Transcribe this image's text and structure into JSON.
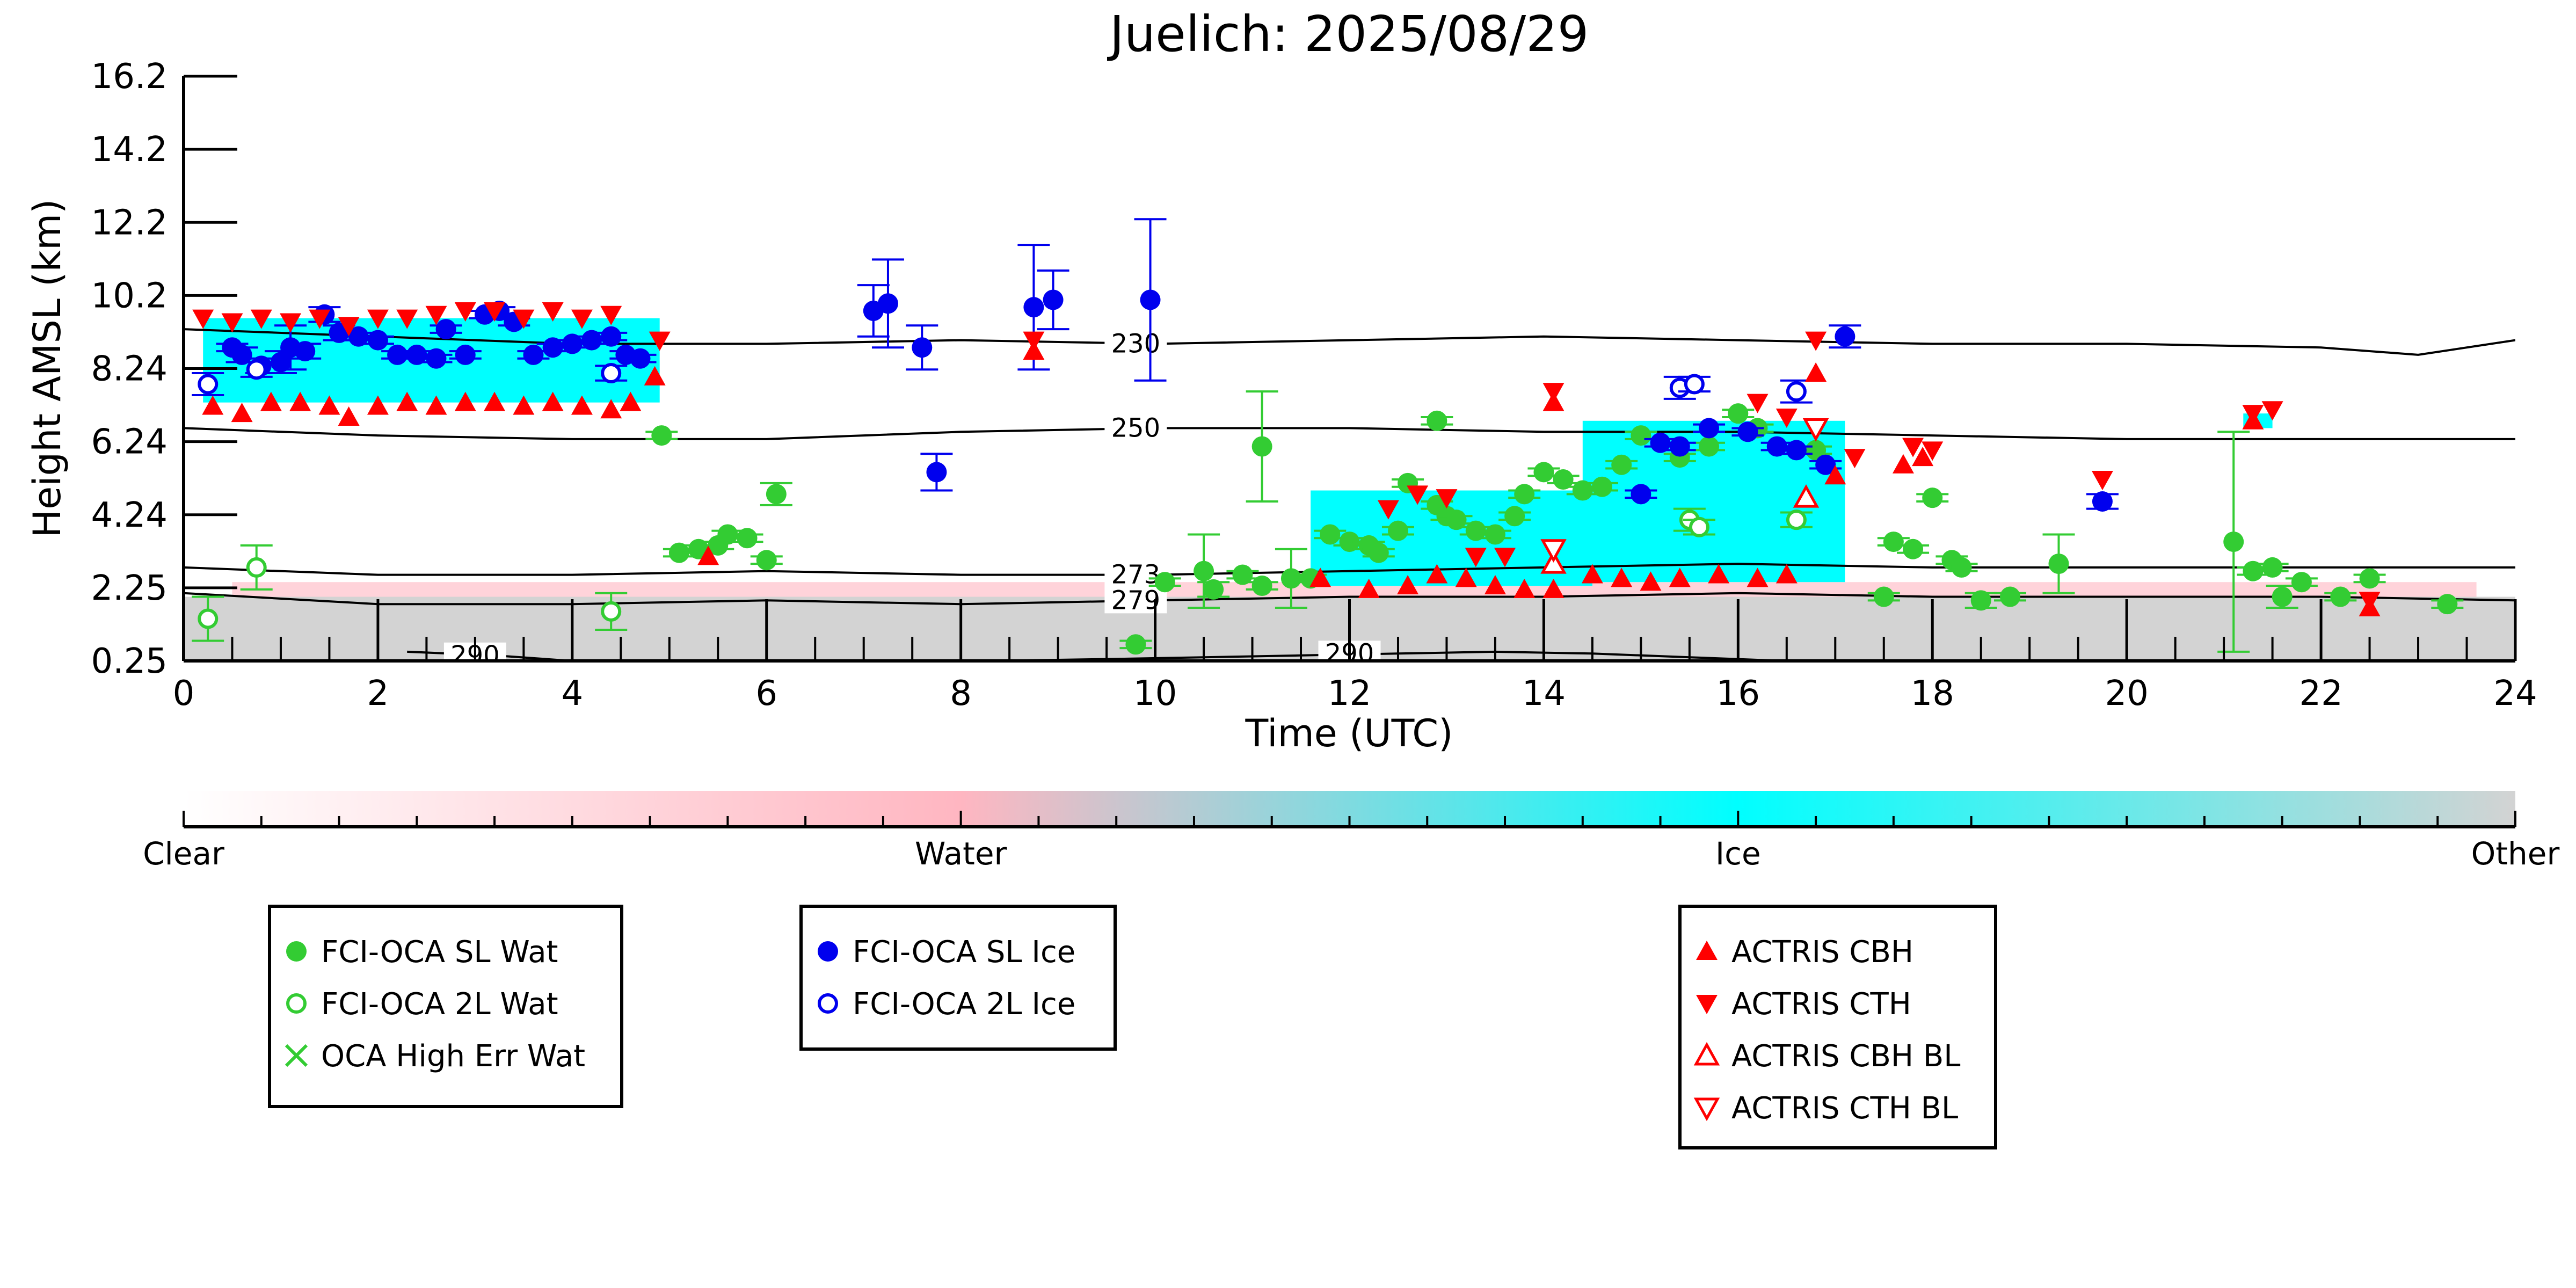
{
  "chart_data": {
    "type": "scatter",
    "title": "Juelich: 2025/08/29",
    "xlabel": "Time (UTC)",
    "ylabel": "Height AMSL (km)",
    "xlim": [
      0,
      24
    ],
    "ylim": [
      0.25,
      16.2
    ],
    "xticks": [
      "0",
      "2",
      "4",
      "6",
      "8",
      "10",
      "12",
      "14",
      "16",
      "18",
      "20",
      "22",
      "24"
    ],
    "yticks": [
      "0.25",
      "2.25",
      "4.24",
      "6.24",
      "8.24",
      "10.2",
      "12.2",
      "14.2",
      "16.2"
    ],
    "grid": false,
    "colorbar": {
      "labels": [
        "Clear",
        "Water",
        "Ice",
        "Other"
      ],
      "colors": [
        "#ffffff",
        "#ffb6c1",
        "#00ffff",
        "#d3d3d3"
      ]
    },
    "background": {
      "description_colors": {
        "water": "#ffb6c1",
        "ice": "#00ffff",
        "other": "#d3d3d3"
      },
      "ice_regions": [
        {
          "x0": 0.2,
          "x1": 4.9,
          "y0": 7.3,
          "y1": 9.6
        },
        {
          "x0": 11.6,
          "x1": 14.5,
          "y0": 2.3,
          "y1": 4.9
        },
        {
          "x0": 14.4,
          "x1": 17.1,
          "y0": 2.4,
          "y1": 6.8
        },
        {
          "x0": 21.2,
          "x1": 21.5,
          "y0": 6.6,
          "y1": 7.0
        }
      ],
      "other_regions": [
        {
          "x0": 0,
          "x1": 24,
          "y0": 0.25,
          "y1": 2.0
        }
      ]
    },
    "contours": [
      {
        "label": "230",
        "x": [
          0,
          2,
          4,
          6,
          8,
          10,
          12,
          14,
          16,
          18,
          20,
          22,
          23,
          24
        ],
        "y": [
          9.3,
          9.1,
          8.9,
          8.9,
          9.0,
          8.9,
          9.0,
          9.1,
          9.0,
          8.9,
          8.9,
          8.8,
          8.6,
          9.0
        ]
      },
      {
        "label": "250",
        "x": [
          0,
          2,
          4,
          6,
          8,
          10,
          12,
          14,
          16,
          18,
          20,
          22,
          24
        ],
        "y": [
          6.6,
          6.4,
          6.3,
          6.3,
          6.5,
          6.6,
          6.6,
          6.5,
          6.5,
          6.4,
          6.3,
          6.3,
          6.3
        ]
      },
      {
        "label": "273",
        "x": [
          0,
          2,
          4,
          6,
          8,
          10,
          12,
          14,
          16,
          18,
          20,
          22,
          24
        ],
        "y": [
          2.8,
          2.6,
          2.6,
          2.7,
          2.6,
          2.6,
          2.7,
          2.8,
          2.9,
          2.8,
          2.8,
          2.8,
          2.8
        ]
      },
      {
        "label": "279",
        "x": [
          0,
          2,
          4,
          6,
          8,
          10,
          12,
          14,
          16,
          18,
          20,
          22,
          24
        ],
        "y": [
          2.1,
          1.8,
          1.8,
          1.9,
          1.8,
          1.9,
          2.0,
          2.0,
          2.1,
          2.0,
          2.0,
          2.0,
          1.9
        ]
      },
      {
        "label": "290",
        "x": [
          2.3,
          3.2,
          4.0
        ],
        "y": [
          0.5,
          0.4,
          0.25
        ]
      },
      {
        "label": "290",
        "x": [
          8.3,
          9.5,
          10.5,
          11.5,
          12.5,
          13.5,
          14.5,
          15.5,
          16.5
        ],
        "y": [
          0.25,
          0.3,
          0.35,
          0.4,
          0.45,
          0.5,
          0.45,
          0.35,
          0.25
        ]
      }
    ],
    "series": [
      {
        "name": "FCI-OCA SL Wat",
        "marker": "filled-circle",
        "color": "#33cc33",
        "points": [
          [
            4.92,
            6.4,
            0.1
          ],
          [
            5.1,
            3.2,
            0.1
          ],
          [
            5.3,
            3.3,
            0.1
          ],
          [
            5.5,
            3.4,
            0.1
          ],
          [
            5.6,
            3.7,
            0.1
          ],
          [
            5.8,
            3.6,
            0.1
          ],
          [
            6.0,
            3.0,
            0.1
          ],
          [
            6.1,
            4.8,
            0.3
          ],
          [
            9.8,
            0.7,
            0.1
          ],
          [
            10.1,
            2.4,
            0.1
          ],
          [
            10.5,
            2.7,
            1.0
          ],
          [
            10.6,
            2.2,
            0.2
          ],
          [
            10.9,
            2.6,
            0.1
          ],
          [
            11.1,
            2.3,
            0.1
          ],
          [
            11.1,
            6.1,
            1.5
          ],
          [
            11.4,
            2.5,
            0.8
          ],
          [
            11.6,
            2.5,
            0.1
          ],
          [
            11.8,
            3.7,
            0.1
          ],
          [
            12.0,
            3.5,
            0.1
          ],
          [
            12.2,
            3.4,
            0.1
          ],
          [
            12.3,
            3.2,
            0.1
          ],
          [
            12.5,
            3.8,
            0.1
          ],
          [
            12.6,
            5.1,
            0.1
          ],
          [
            12.9,
            4.5,
            0.1
          ],
          [
            12.9,
            6.8,
            0.1
          ],
          [
            13.0,
            4.2,
            0.1
          ],
          [
            13.1,
            4.1,
            0.1
          ],
          [
            13.3,
            3.8,
            0.1
          ],
          [
            13.5,
            3.7,
            0.1
          ],
          [
            13.7,
            4.2,
            0.1
          ],
          [
            13.8,
            4.8,
            0.1
          ],
          [
            14.0,
            5.4,
            0.1
          ],
          [
            14.2,
            5.2,
            0.1
          ],
          [
            14.4,
            4.9,
            0.1
          ],
          [
            14.6,
            5.0,
            0.1
          ],
          [
            14.8,
            5.6,
            0.1
          ],
          [
            15.0,
            6.4,
            0.1
          ],
          [
            15.4,
            5.8,
            0.1
          ],
          [
            15.7,
            6.1,
            0.1
          ],
          [
            16.0,
            7.0,
            0.1
          ],
          [
            16.2,
            6.6,
            0.1
          ],
          [
            16.8,
            6.0,
            0.1
          ],
          [
            17.5,
            2.0,
            0.1
          ],
          [
            17.6,
            3.5,
            0.1
          ],
          [
            17.8,
            3.3,
            0.1
          ],
          [
            18.0,
            4.7,
            0.1
          ],
          [
            18.2,
            3.0,
            0.1
          ],
          [
            18.3,
            2.8,
            0.1
          ],
          [
            18.5,
            1.9,
            0.2
          ],
          [
            18.8,
            2.0,
            0.1
          ],
          [
            19.3,
            2.9,
            0.8
          ],
          [
            21.1,
            3.5,
            3.0
          ],
          [
            21.3,
            2.7,
            0.1
          ],
          [
            21.5,
            2.8,
            0.1
          ],
          [
            21.6,
            2.0,
            0.3
          ],
          [
            21.8,
            2.4,
            0.1
          ],
          [
            22.2,
            2.0,
            0.1
          ],
          [
            22.5,
            2.5,
            0.1
          ],
          [
            23.3,
            1.8,
            0.1
          ]
        ]
      },
      {
        "name": "FCI-OCA 2L Wat",
        "marker": "open-circle",
        "color": "#33cc33",
        "points": [
          [
            0.25,
            1.4,
            0.6
          ],
          [
            0.75,
            2.8,
            0.6
          ],
          [
            4.4,
            1.6,
            0.5
          ],
          [
            15.5,
            4.1,
            0.3
          ],
          [
            15.6,
            3.9,
            0.2
          ],
          [
            16.6,
            4.1,
            0.2
          ]
        ]
      },
      {
        "name": "OCA High Err Wat",
        "marker": "x",
        "color": "#33cc33",
        "points": []
      },
      {
        "name": "FCI-OCA SL Ice",
        "marker": "filled-circle",
        "color": "#0000ee",
        "points": [
          [
            0.5,
            8.8,
            0.1
          ],
          [
            0.6,
            8.6,
            0.2
          ],
          [
            0.8,
            8.3,
            0.2
          ],
          [
            1.0,
            8.4,
            0.3
          ],
          [
            1.1,
            8.8,
            0.6
          ],
          [
            1.25,
            8.7,
            0.2
          ],
          [
            1.45,
            9.7,
            0.2
          ],
          [
            1.6,
            9.2,
            0.2
          ],
          [
            1.8,
            9.1,
            0.1
          ],
          [
            2.0,
            9.0,
            0.1
          ],
          [
            2.2,
            8.6,
            0.1
          ],
          [
            2.4,
            8.6,
            0.1
          ],
          [
            2.6,
            8.5,
            0.1
          ],
          [
            2.7,
            9.3,
            0.1
          ],
          [
            2.9,
            8.6,
            0.1
          ],
          [
            3.1,
            9.7,
            0.1
          ],
          [
            3.25,
            9.8,
            0.1
          ],
          [
            3.4,
            9.5,
            0.1
          ],
          [
            3.6,
            8.6,
            0.1
          ],
          [
            3.8,
            8.8,
            0.1
          ],
          [
            4.0,
            8.9,
            0.1
          ],
          [
            4.2,
            9.0,
            0.1
          ],
          [
            4.4,
            9.1,
            0.1
          ],
          [
            4.55,
            8.6,
            0.1
          ],
          [
            4.7,
            8.5,
            0.1
          ],
          [
            7.1,
            9.8,
            0.7
          ],
          [
            7.25,
            10.0,
            1.2
          ],
          [
            7.6,
            8.8,
            0.6
          ],
          [
            7.75,
            5.4,
            0.5
          ],
          [
            8.75,
            9.9,
            1.7
          ],
          [
            8.95,
            10.1,
            0.8
          ],
          [
            9.95,
            10.1,
            2.2
          ],
          [
            15.0,
            4.8,
            0.1
          ],
          [
            15.2,
            6.2,
            0.1
          ],
          [
            15.4,
            6.1,
            0.1
          ],
          [
            15.7,
            6.6,
            0.1
          ],
          [
            16.1,
            6.5,
            0.1
          ],
          [
            16.4,
            6.1,
            0.1
          ],
          [
            16.6,
            6.0,
            0.1
          ],
          [
            16.9,
            5.6,
            0.1
          ],
          [
            17.1,
            9.1,
            0.3
          ],
          [
            19.75,
            4.6,
            0.2
          ]
        ]
      },
      {
        "name": "FCI-OCA 2L Ice",
        "marker": "open-circle",
        "color": "#0000ee",
        "points": [
          [
            0.25,
            7.8,
            0.3
          ],
          [
            0.75,
            8.2,
            0.2
          ],
          [
            4.4,
            8.1,
            0.2
          ],
          [
            15.4,
            7.7,
            0.3
          ],
          [
            15.55,
            7.8,
            0.2
          ],
          [
            16.6,
            7.6,
            0.3
          ]
        ]
      },
      {
        "name": "ACTRIS CBH",
        "marker": "triangle-up",
        "color": "#ff0000",
        "points": [
          [
            0.3,
            7.2
          ],
          [
            0.6,
            7.0
          ],
          [
            0.9,
            7.3
          ],
          [
            1.2,
            7.3
          ],
          [
            1.5,
            7.2
          ],
          [
            1.7,
            6.9
          ],
          [
            2.0,
            7.2
          ],
          [
            2.3,
            7.3
          ],
          [
            2.6,
            7.2
          ],
          [
            2.9,
            7.3
          ],
          [
            3.2,
            7.3
          ],
          [
            3.5,
            7.2
          ],
          [
            3.8,
            7.3
          ],
          [
            4.1,
            7.2
          ],
          [
            4.4,
            7.1
          ],
          [
            4.6,
            7.3
          ],
          [
            4.85,
            8.0
          ],
          [
            5.4,
            3.1
          ],
          [
            8.75,
            8.7
          ],
          [
            11.7,
            2.5
          ],
          [
            12.2,
            2.2
          ],
          [
            12.6,
            2.3
          ],
          [
            12.9,
            2.6
          ],
          [
            13.2,
            2.5
          ],
          [
            13.5,
            2.3
          ],
          [
            13.8,
            2.2
          ],
          [
            14.1,
            2.2
          ],
          [
            14.5,
            2.6
          ],
          [
            14.8,
            2.5
          ],
          [
            15.1,
            2.4
          ],
          [
            15.4,
            2.5
          ],
          [
            15.8,
            2.6
          ],
          [
            16.2,
            2.5
          ],
          [
            16.5,
            2.6
          ],
          [
            14.1,
            7.3
          ],
          [
            16.8,
            8.1
          ],
          [
            17.0,
            5.3
          ],
          [
            17.7,
            5.6
          ],
          [
            17.9,
            5.8
          ],
          [
            21.3,
            6.8
          ],
          [
            22.5,
            1.7
          ]
        ]
      },
      {
        "name": "ACTRIS CTH",
        "marker": "triangle-down",
        "color": "#ff0000",
        "points": [
          [
            0.2,
            9.6
          ],
          [
            0.5,
            9.5
          ],
          [
            0.8,
            9.6
          ],
          [
            1.1,
            9.5
          ],
          [
            1.4,
            9.6
          ],
          [
            1.7,
            9.4
          ],
          [
            2.0,
            9.6
          ],
          [
            2.3,
            9.6
          ],
          [
            2.6,
            9.7
          ],
          [
            2.9,
            9.8
          ],
          [
            3.2,
            9.8
          ],
          [
            3.5,
            9.6
          ],
          [
            3.8,
            9.8
          ],
          [
            4.1,
            9.6
          ],
          [
            4.4,
            9.7
          ],
          [
            4.9,
            9.0
          ],
          [
            8.75,
            9.0
          ],
          [
            12.4,
            4.4
          ],
          [
            12.7,
            4.8
          ],
          [
            13.0,
            4.7
          ],
          [
            13.3,
            3.1
          ],
          [
            13.6,
            3.1
          ],
          [
            14.1,
            7.6
          ],
          [
            16.2,
            7.3
          ],
          [
            16.5,
            6.9
          ],
          [
            16.8,
            9.0
          ],
          [
            17.2,
            5.8
          ],
          [
            17.8,
            6.1
          ],
          [
            18.0,
            6.0
          ],
          [
            19.75,
            5.2
          ],
          [
            21.3,
            7.0
          ],
          [
            21.5,
            7.1
          ],
          [
            22.5,
            1.9
          ]
        ]
      },
      {
        "name": "ACTRIS CBH BL",
        "marker": "open-triangle-up",
        "color": "#ff0000",
        "points": [
          [
            14.1,
            2.9
          ],
          [
            16.7,
            4.7
          ]
        ]
      },
      {
        "name": "ACTRIS CTH BL",
        "marker": "open-triangle-down",
        "color": "#ff0000",
        "points": [
          [
            14.1,
            3.3
          ],
          [
            16.8,
            6.6
          ]
        ]
      }
    ],
    "legends": [
      [
        "FCI-OCA SL Wat",
        "FCI-OCA 2L Wat",
        "OCA High Err Wat"
      ],
      [
        "FCI-OCA SL Ice",
        "FCI-OCA 2L Ice"
      ],
      [
        "ACTRIS CBH",
        "ACTRIS CTH",
        "ACTRIS CBH BL",
        "ACTRIS CTH BL"
      ]
    ]
  }
}
